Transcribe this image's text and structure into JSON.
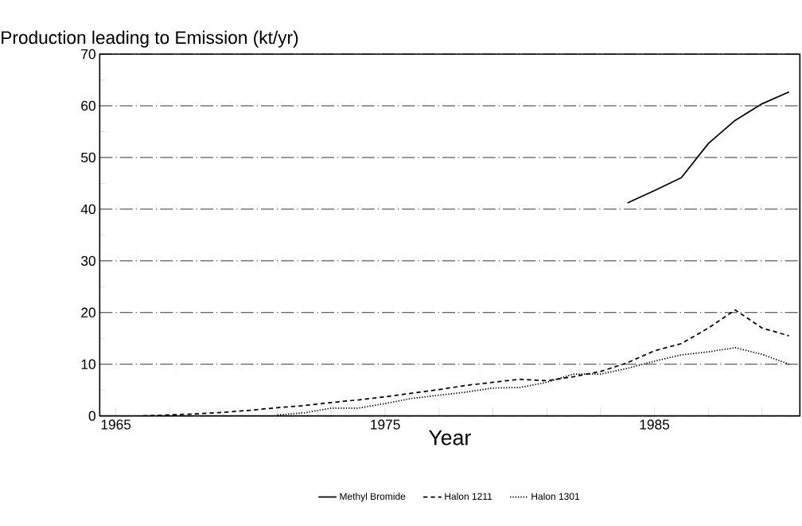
{
  "chart_data": {
    "type": "line",
    "title": "Production leading to Emission (kt/yr)",
    "xlabel": "Year",
    "xlim": [
      1964.4,
      1990.4
    ],
    "xticks": [
      1965,
      {
        "value": 1967,
        "label": null
      },
      {
        "value": 1969,
        "label": null
      },
      {
        "value": 1971,
        "label": null
      },
      {
        "value": 1973,
        "label": null
      },
      1975,
      {
        "value": 1977,
        "label": null
      },
      {
        "value": 1979,
        "label": null
      },
      {
        "value": 1981,
        "label": null
      },
      {
        "value": 1983,
        "label": null
      },
      1985,
      {
        "value": 1987,
        "label": null
      },
      {
        "value": 1989,
        "label": null
      }
    ],
    "ylim": [
      0,
      70
    ],
    "yticks": [
      0,
      10,
      20,
      30,
      40,
      50,
      60,
      70
    ],
    "grid": "y",
    "legend": "bottom",
    "series": [
      {
        "name": "Methyl Bromide",
        "color": "#000000",
        "line_style": "solid",
        "x": [
          1984,
          1985,
          1986,
          1987,
          1988,
          1989,
          1990
        ],
        "values": [
          41.2,
          43.6,
          46.1,
          52.7,
          57.2,
          60.4,
          62.7
        ]
      },
      {
        "name": "Halon 1211",
        "color": "#000000",
        "line_style": "dashed",
        "x": [
          1966,
          1967,
          1968,
          1969,
          1970,
          1971,
          1972,
          1973,
          1974,
          1975,
          1976,
          1977,
          1978,
          1979,
          1980,
          1981,
          1982,
          1983,
          1984,
          1985,
          1986,
          1987,
          1988,
          1989,
          1990
        ],
        "values": [
          0,
          0.2,
          0.4,
          0.7,
          1.1,
          1.6,
          2.0,
          2.6,
          3.1,
          3.7,
          4.4,
          5.1,
          5.9,
          6.5,
          7.1,
          6.8,
          7.6,
          8.6,
          10.3,
          12.6,
          14.0,
          17.0,
          20.5,
          17.0,
          15.5
        ]
      },
      {
        "name": "Halon 1301",
        "color": "#000000",
        "line_style": "dotted",
        "x": [
          1971,
          1972,
          1973,
          1974,
          1975,
          1976,
          1977,
          1978,
          1979,
          1980,
          1981,
          1982,
          1983,
          1984,
          1985,
          1986,
          1987,
          1988,
          1989,
          1990
        ],
        "values": [
          0.2,
          0.6,
          1.5,
          1.5,
          2.4,
          3.4,
          4.0,
          4.6,
          5.4,
          5.5,
          6.5,
          8.1,
          8.1,
          9.2,
          10.6,
          11.8,
          12.4,
          13.2,
          11.9,
          10.0
        ]
      }
    ]
  }
}
